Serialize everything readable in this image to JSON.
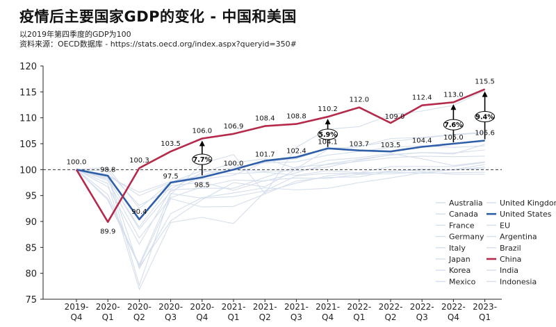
{
  "title": "疫情后主要国家GDP的变化 - 中国和美国",
  "subtitle": "以2019年第四季度的GDP为100",
  "source": "资料来源：OECD数据库 - https://stats.oecd.org/index.aspx?queryid=350#",
  "chart_data": {
    "type": "line",
    "categories": [
      [
        "2019-",
        "Q4"
      ],
      [
        "2020-",
        "Q1"
      ],
      [
        "2020-",
        "Q2"
      ],
      [
        "2020-",
        "Q3"
      ],
      [
        "2020-",
        "Q4"
      ],
      [
        "2021-",
        "Q1"
      ],
      [
        "2021-",
        "Q2"
      ],
      [
        "2021-",
        "Q3"
      ],
      [
        "2021-",
        "Q4"
      ],
      [
        "2022-",
        "Q1"
      ],
      [
        "2022-",
        "Q2"
      ],
      [
        "2022-",
        "Q3"
      ],
      [
        "2022-",
        "Q4"
      ],
      [
        "2023-",
        "Q1"
      ]
    ],
    "ylim": [
      75,
      120
    ],
    "yticks": [
      75,
      80,
      85,
      90,
      95,
      100,
      105,
      110,
      115,
      120
    ],
    "baseline": 100,
    "legend_position": "bottom-right",
    "colors": {
      "china": "#b5294a",
      "us": "#2e5ea8",
      "other": "#d5deec",
      "axis": "#222222"
    },
    "series": [
      {
        "name": "China",
        "key": "china",
        "highlight": true,
        "values": [
          100.0,
          89.9,
          100.3,
          103.5,
          106.0,
          106.9,
          108.4,
          108.8,
          110.2,
          112.0,
          109.0,
          112.4,
          113.0,
          115.5
        ],
        "labels": [
          "100.0",
          "89.9",
          "100.3",
          "103.5",
          "106.0",
          "106.9",
          "108.4",
          "108.8",
          "110.2",
          "112.0",
          "109.0",
          "112.4",
          "113.0",
          "115.5"
        ]
      },
      {
        "name": "United States",
        "key": "us",
        "highlight": true,
        "values": [
          100.0,
          98.8,
          90.4,
          97.5,
          98.5,
          100.0,
          101.7,
          102.4,
          104.1,
          103.7,
          103.5,
          104.4,
          105.0,
          105.6
        ],
        "labels": [
          "",
          "98.8",
          "90.4",
          "97.5",
          "98.5",
          "100.0",
          "101.7",
          "102.4",
          "104.1",
          "103.7",
          "103.5",
          "104.4",
          "105.0",
          "105.6"
        ]
      },
      {
        "name": "Australia",
        "values": [
          100,
          99.7,
          93.1,
          96.3,
          99.4,
          101.3,
          102.1,
          100.2,
          103.9,
          104.5,
          105.4,
          106.1,
          106.7,
          107.1
        ]
      },
      {
        "name": "Canada",
        "values": [
          100,
          97.9,
          86.8,
          94.6,
          96.7,
          98.0,
          97.8,
          99.4,
          101.1,
          102.0,
          102.8,
          103.3,
          103.2,
          103.8
        ]
      },
      {
        "name": "France",
        "values": [
          100,
          94.4,
          81.7,
          95.4,
          94.5,
          94.8,
          95.9,
          98.8,
          99.3,
          99.2,
          99.7,
          99.9,
          100.0,
          100.2
        ]
      },
      {
        "name": "Germany",
        "values": [
          100,
          98.2,
          88.9,
          96.9,
          97.6,
          96.0,
          97.9,
          98.4,
          98.3,
          99.1,
          99.2,
          99.6,
          99.1,
          99.1
        ]
      },
      {
        "name": "Italy",
        "values": [
          100,
          94.1,
          81.4,
          94.4,
          92.8,
          92.9,
          95.3,
          97.8,
          98.5,
          98.6,
          99.7,
          100.1,
          99.9,
          100.5
        ]
      },
      {
        "name": "Japan",
        "values": [
          100,
          100.4,
          92.5,
          97.6,
          99.8,
          99.2,
          99.5,
          98.9,
          99.8,
          99.4,
          100.6,
          100.6,
          100.6,
          101.4
        ]
      },
      {
        "name": "Korea",
        "values": [
          100,
          98.7,
          95.6,
          97.7,
          98.9,
          100.5,
          101.3,
          101.5,
          102.8,
          103.5,
          104.3,
          104.6,
          104.3,
          104.6
        ]
      },
      {
        "name": "Mexico",
        "values": [
          100,
          99.1,
          80.9,
          91.5,
          94.6,
          95.5,
          96.5,
          96.1,
          96.4,
          97.5,
          98.4,
          99.4,
          100.0,
          101.0
        ]
      },
      {
        "name": "United Kingdom",
        "values": [
          100,
          97.3,
          76.9,
          89.8,
          90.8,
          89.6,
          95.7,
          97.4,
          98.8,
          99.4,
          99.5,
          99.3,
          99.4,
          99.5
        ]
      },
      {
        "name": "EU",
        "values": [
          100,
          96.7,
          85.6,
          96.1,
          96.4,
          96.4,
          98.5,
          100.5,
          101.0,
          101.6,
          102.3,
          102.6,
          102.5,
          102.6
        ]
      },
      {
        "name": "Argentina",
        "values": [
          100,
          95.2,
          81.3,
          90.1,
          94.2,
          97.5,
          96.7,
          100.1,
          101.8,
          102.3,
          103.1,
          102.1,
          100.8,
          101.5
        ]
      },
      {
        "name": "Brazil",
        "values": [
          100,
          98.4,
          88.5,
          95.8,
          98.7,
          99.9,
          99.7,
          99.8,
          100.5,
          101.8,
          102.9,
          103.3,
          103.0,
          104.9
        ]
      },
      {
        "name": "India",
        "values": [
          100,
          98.9,
          77.7,
          95.2,
          101.2,
          102.9,
          95.4,
          104.3,
          107.8,
          108.3,
          110.6,
          111.3,
          112.4,
          115.2
        ]
      },
      {
        "name": "Indonesia",
        "values": [
          100,
          99.0,
          95.0,
          97.5,
          98.2,
          98.9,
          101.5,
          102.1,
          104.1,
          104.4,
          106.0,
          106.2,
          106.8,
          107.2
        ]
      }
    ],
    "gap_annotations": [
      {
        "index": 4,
        "text": "7.7%"
      },
      {
        "index": 8,
        "text": "5.9%"
      },
      {
        "index": 12,
        "text": "7.6%"
      },
      {
        "index": 13,
        "text": "9.4%"
      }
    ],
    "legend": [
      [
        "Australia",
        "United Kingdom"
      ],
      [
        "Canada",
        "United States"
      ],
      [
        "France",
        "EU"
      ],
      [
        "Germany",
        "Argentina"
      ],
      [
        "Italy",
        "Brazil"
      ],
      [
        "Japan",
        "China"
      ],
      [
        "Korea",
        "India"
      ],
      [
        "Mexico",
        "Indonesia"
      ]
    ]
  }
}
